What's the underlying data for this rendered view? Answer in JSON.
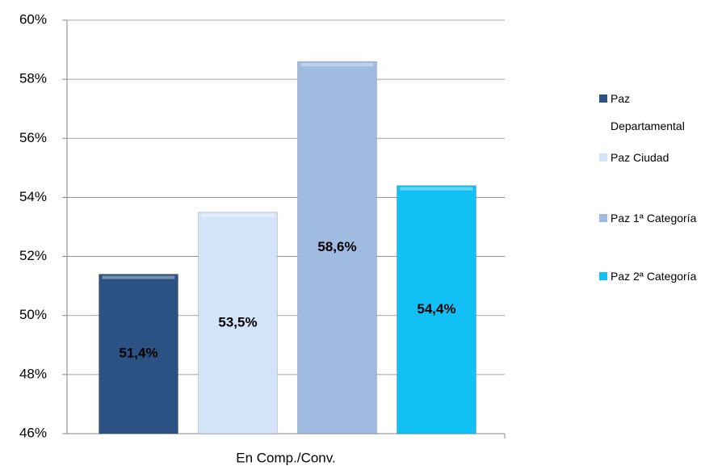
{
  "chart_data": {
    "type": "bar",
    "categories": [
      "En Comp./Conv."
    ],
    "series": [
      {
        "name": "Paz Departamental",
        "color": "#2b5283",
        "values": [
          51.4
        ],
        "value_labels": [
          "51,4%"
        ]
      },
      {
        "name": "Paz Ciudad",
        "color": "#d3e3f8",
        "values": [
          53.5
        ],
        "value_labels": [
          "53,5%"
        ]
      },
      {
        "name": "Paz 1ª Categoría",
        "color": "#9fbbe0",
        "values": [
          58.6
        ],
        "value_labels": [
          "58,6%"
        ]
      },
      {
        "name": "Paz 2ª Categoría",
        "color": "#12c0f5",
        "values": [
          54.4
        ],
        "value_labels": [
          "54,4%"
        ]
      }
    ],
    "ylim": [
      46,
      60
    ],
    "yticks": [
      {
        "value": 46,
        "label": "46%"
      },
      {
        "value": 48,
        "label": "48%"
      },
      {
        "value": 50,
        "label": "50%"
      },
      {
        "value": 52,
        "label": "52%"
      },
      {
        "value": 54,
        "label": "54%"
      },
      {
        "value": 56,
        "label": "56%"
      },
      {
        "value": 58,
        "label": "58%"
      },
      {
        "value": 60,
        "label": "60%"
      }
    ],
    "grid": true,
    "legend": "right"
  }
}
